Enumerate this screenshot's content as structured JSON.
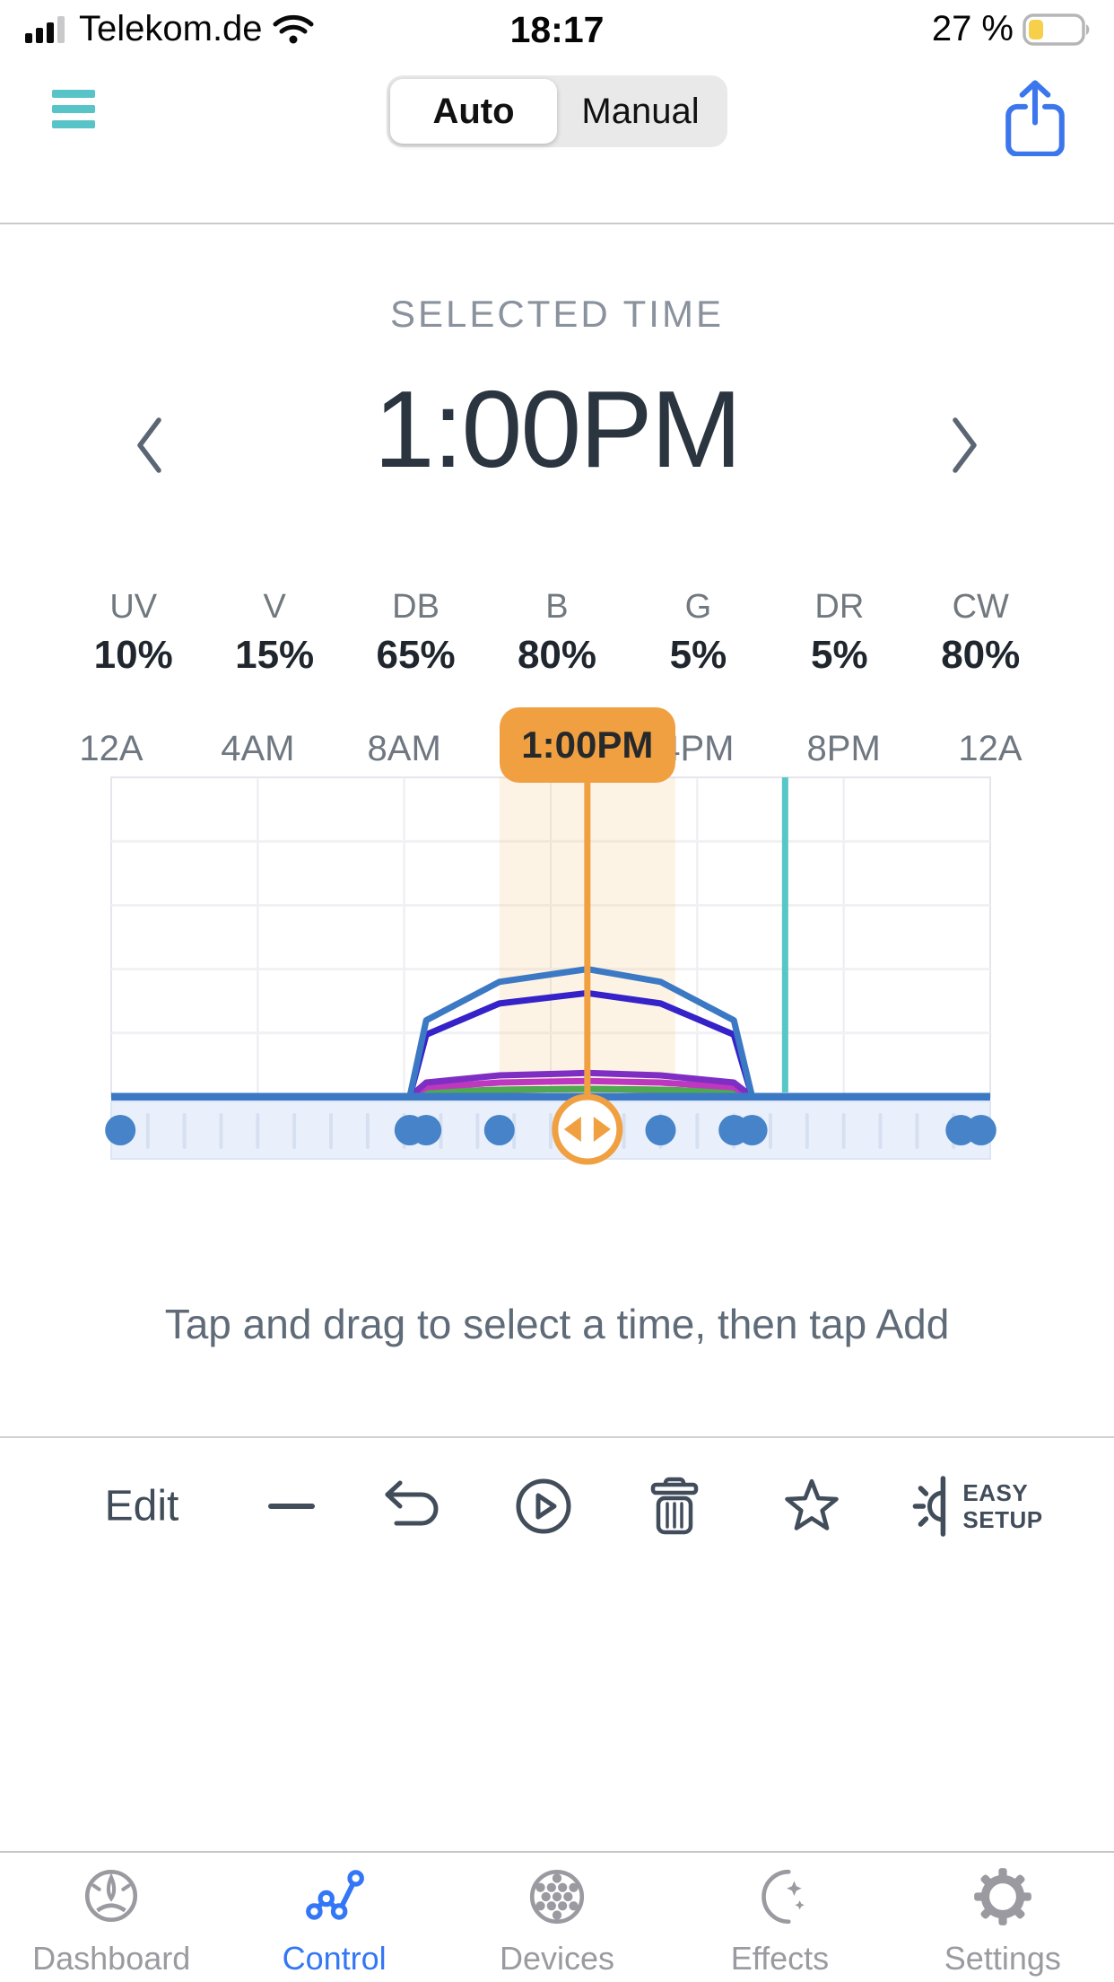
{
  "status_bar": {
    "carrier": "Telekom.de",
    "time": "18:17",
    "battery_label": "27 %",
    "battery_percent": 27
  },
  "nav": {
    "menu_icon": "hamburger-menu-icon",
    "share_icon": "share-icon",
    "segments": [
      {
        "label": "Auto",
        "selected": true
      },
      {
        "label": "Manual",
        "selected": false
      }
    ]
  },
  "selected_time": {
    "heading": "SELECTED TIME",
    "value": "1:00PM"
  },
  "channels": [
    {
      "label": "UV",
      "value": "10%"
    },
    {
      "label": "V",
      "value": "15%"
    },
    {
      "label": "DB",
      "value": "65%"
    },
    {
      "label": "B",
      "value": "80%"
    },
    {
      "label": "G",
      "value": "5%"
    },
    {
      "label": "DR",
      "value": "5%"
    },
    {
      "label": "CW",
      "value": "80%"
    }
  ],
  "timeline": {
    "labels": [
      {
        "text": "12A",
        "hour": 0
      },
      {
        "text": "4AM",
        "hour": 4
      },
      {
        "text": "8AM",
        "hour": 8
      },
      {
        "text": "4PM",
        "hour": 16
      },
      {
        "text": "8PM",
        "hour": 20
      },
      {
        "text": "12A",
        "hour": 24
      }
    ],
    "selected": {
      "text": "1:00PM",
      "hour": 13
    }
  },
  "chart_data": {
    "type": "line",
    "x_unit": "hour_of_day",
    "x_range": [
      0,
      24
    ],
    "y_axis_max_percent": 200,
    "grid": {
      "vertical_every_hours": 4,
      "horizontal_rows": 5
    },
    "selected_hour": 13,
    "selected_band_hours": [
      10.6,
      15.4
    ],
    "current_time_hour": 18.4,
    "series": [
      {
        "name": "CW",
        "peak_percent": 80,
        "color": "#d9dde2",
        "points": [
          [
            0,
            0
          ],
          [
            8.15,
            0
          ],
          [
            8.6,
            48
          ],
          [
            10.6,
            72
          ],
          [
            13,
            80
          ],
          [
            15.0,
            72
          ],
          [
            17.0,
            48
          ],
          [
            17.5,
            0
          ],
          [
            24,
            0
          ]
        ]
      },
      {
        "name": "DR",
        "peak_percent": 5,
        "color": "#9b2335",
        "points": [
          [
            0,
            0
          ],
          [
            8.15,
            0
          ],
          [
            8.6,
            3
          ],
          [
            10.6,
            4.5
          ],
          [
            13,
            5
          ],
          [
            15.0,
            4.5
          ],
          [
            17.0,
            3
          ],
          [
            17.5,
            0
          ],
          [
            24,
            0
          ]
        ]
      },
      {
        "name": "G",
        "peak_percent": 5,
        "color": "#50a852",
        "points": [
          [
            0,
            0
          ],
          [
            8.15,
            0
          ],
          [
            8.6,
            3
          ],
          [
            10.6,
            4.5
          ],
          [
            13,
            5
          ],
          [
            15.0,
            4.5
          ],
          [
            17.0,
            3
          ],
          [
            17.5,
            0
          ],
          [
            24,
            0
          ]
        ]
      },
      {
        "name": "UV",
        "peak_percent": 10,
        "color": "#bd38bf",
        "points": [
          [
            0,
            0
          ],
          [
            8.15,
            0
          ],
          [
            8.6,
            6
          ],
          [
            10.6,
            9
          ],
          [
            13,
            10
          ],
          [
            15.0,
            9
          ],
          [
            17.0,
            6
          ],
          [
            17.5,
            0
          ],
          [
            24,
            0
          ]
        ]
      },
      {
        "name": "V",
        "peak_percent": 15,
        "color": "#7f2ec4",
        "points": [
          [
            0,
            0
          ],
          [
            8.15,
            0
          ],
          [
            8.6,
            9
          ],
          [
            10.6,
            13.5
          ],
          [
            13,
            15
          ],
          [
            15.0,
            13.5
          ],
          [
            17.0,
            9
          ],
          [
            17.5,
            0
          ],
          [
            24,
            0
          ]
        ]
      },
      {
        "name": "DB",
        "peak_percent": 65,
        "color": "#3522c8",
        "points": [
          [
            0,
            0
          ],
          [
            8.15,
            0
          ],
          [
            8.6,
            39
          ],
          [
            10.6,
            58.5
          ],
          [
            13,
            65
          ],
          [
            15.0,
            58.5
          ],
          [
            17.0,
            39
          ],
          [
            17.5,
            0
          ],
          [
            24,
            0
          ]
        ]
      },
      {
        "name": "B",
        "peak_percent": 80,
        "color": "#3c79c5",
        "points": [
          [
            0,
            0
          ],
          [
            8.15,
            0
          ],
          [
            8.6,
            48
          ],
          [
            10.6,
            72
          ],
          [
            13,
            80
          ],
          [
            15.0,
            72
          ],
          [
            17.0,
            48
          ],
          [
            17.5,
            0
          ],
          [
            24,
            0
          ]
        ]
      }
    ]
  },
  "slider": {
    "dot_hours": [
      0.25,
      8.15,
      8.6,
      10.6,
      15.0,
      17.0,
      17.5,
      23.2,
      23.75
    ],
    "handle_hour": 13,
    "handle_icon": "left-right-arrows-icon"
  },
  "hint": "Tap and drag to select a time, then tap Add",
  "toolbar": {
    "edit_label": "Edit",
    "icons": [
      "minus-icon",
      "undo-icon",
      "play-circle-icon",
      "trash-icon",
      "star-icon",
      "easy-setup-icon"
    ],
    "easy_setup_line1": "EASY",
    "easy_setup_line2": "SETUP"
  },
  "tab_bar": [
    {
      "label": "Dashboard",
      "icon": "gauge-icon",
      "active": false
    },
    {
      "label": "Control",
      "icon": "line-chart-icon",
      "active": true
    },
    {
      "label": "Devices",
      "icon": "led-puck-icon",
      "active": false
    },
    {
      "label": "Effects",
      "icon": "moon-icon",
      "active": false
    },
    {
      "label": "Settings",
      "icon": "gear-icon",
      "active": false
    }
  ],
  "colors": {
    "accent_orange": "#f0a041",
    "selected_band": "rgba(243,167,66,0.14)",
    "current_time_teal": "#56c7c7",
    "baseline_blue": "#3c79c5",
    "slider_track": "#e9f0fb",
    "slider_tick": "#d6e0f1",
    "slider_dot": "#4683c8",
    "tab_active": "#3377f6",
    "tab_inactive": "#9a9aa0",
    "menu_teal": "#58c4c8",
    "share_blue": "#3b76ec"
  }
}
